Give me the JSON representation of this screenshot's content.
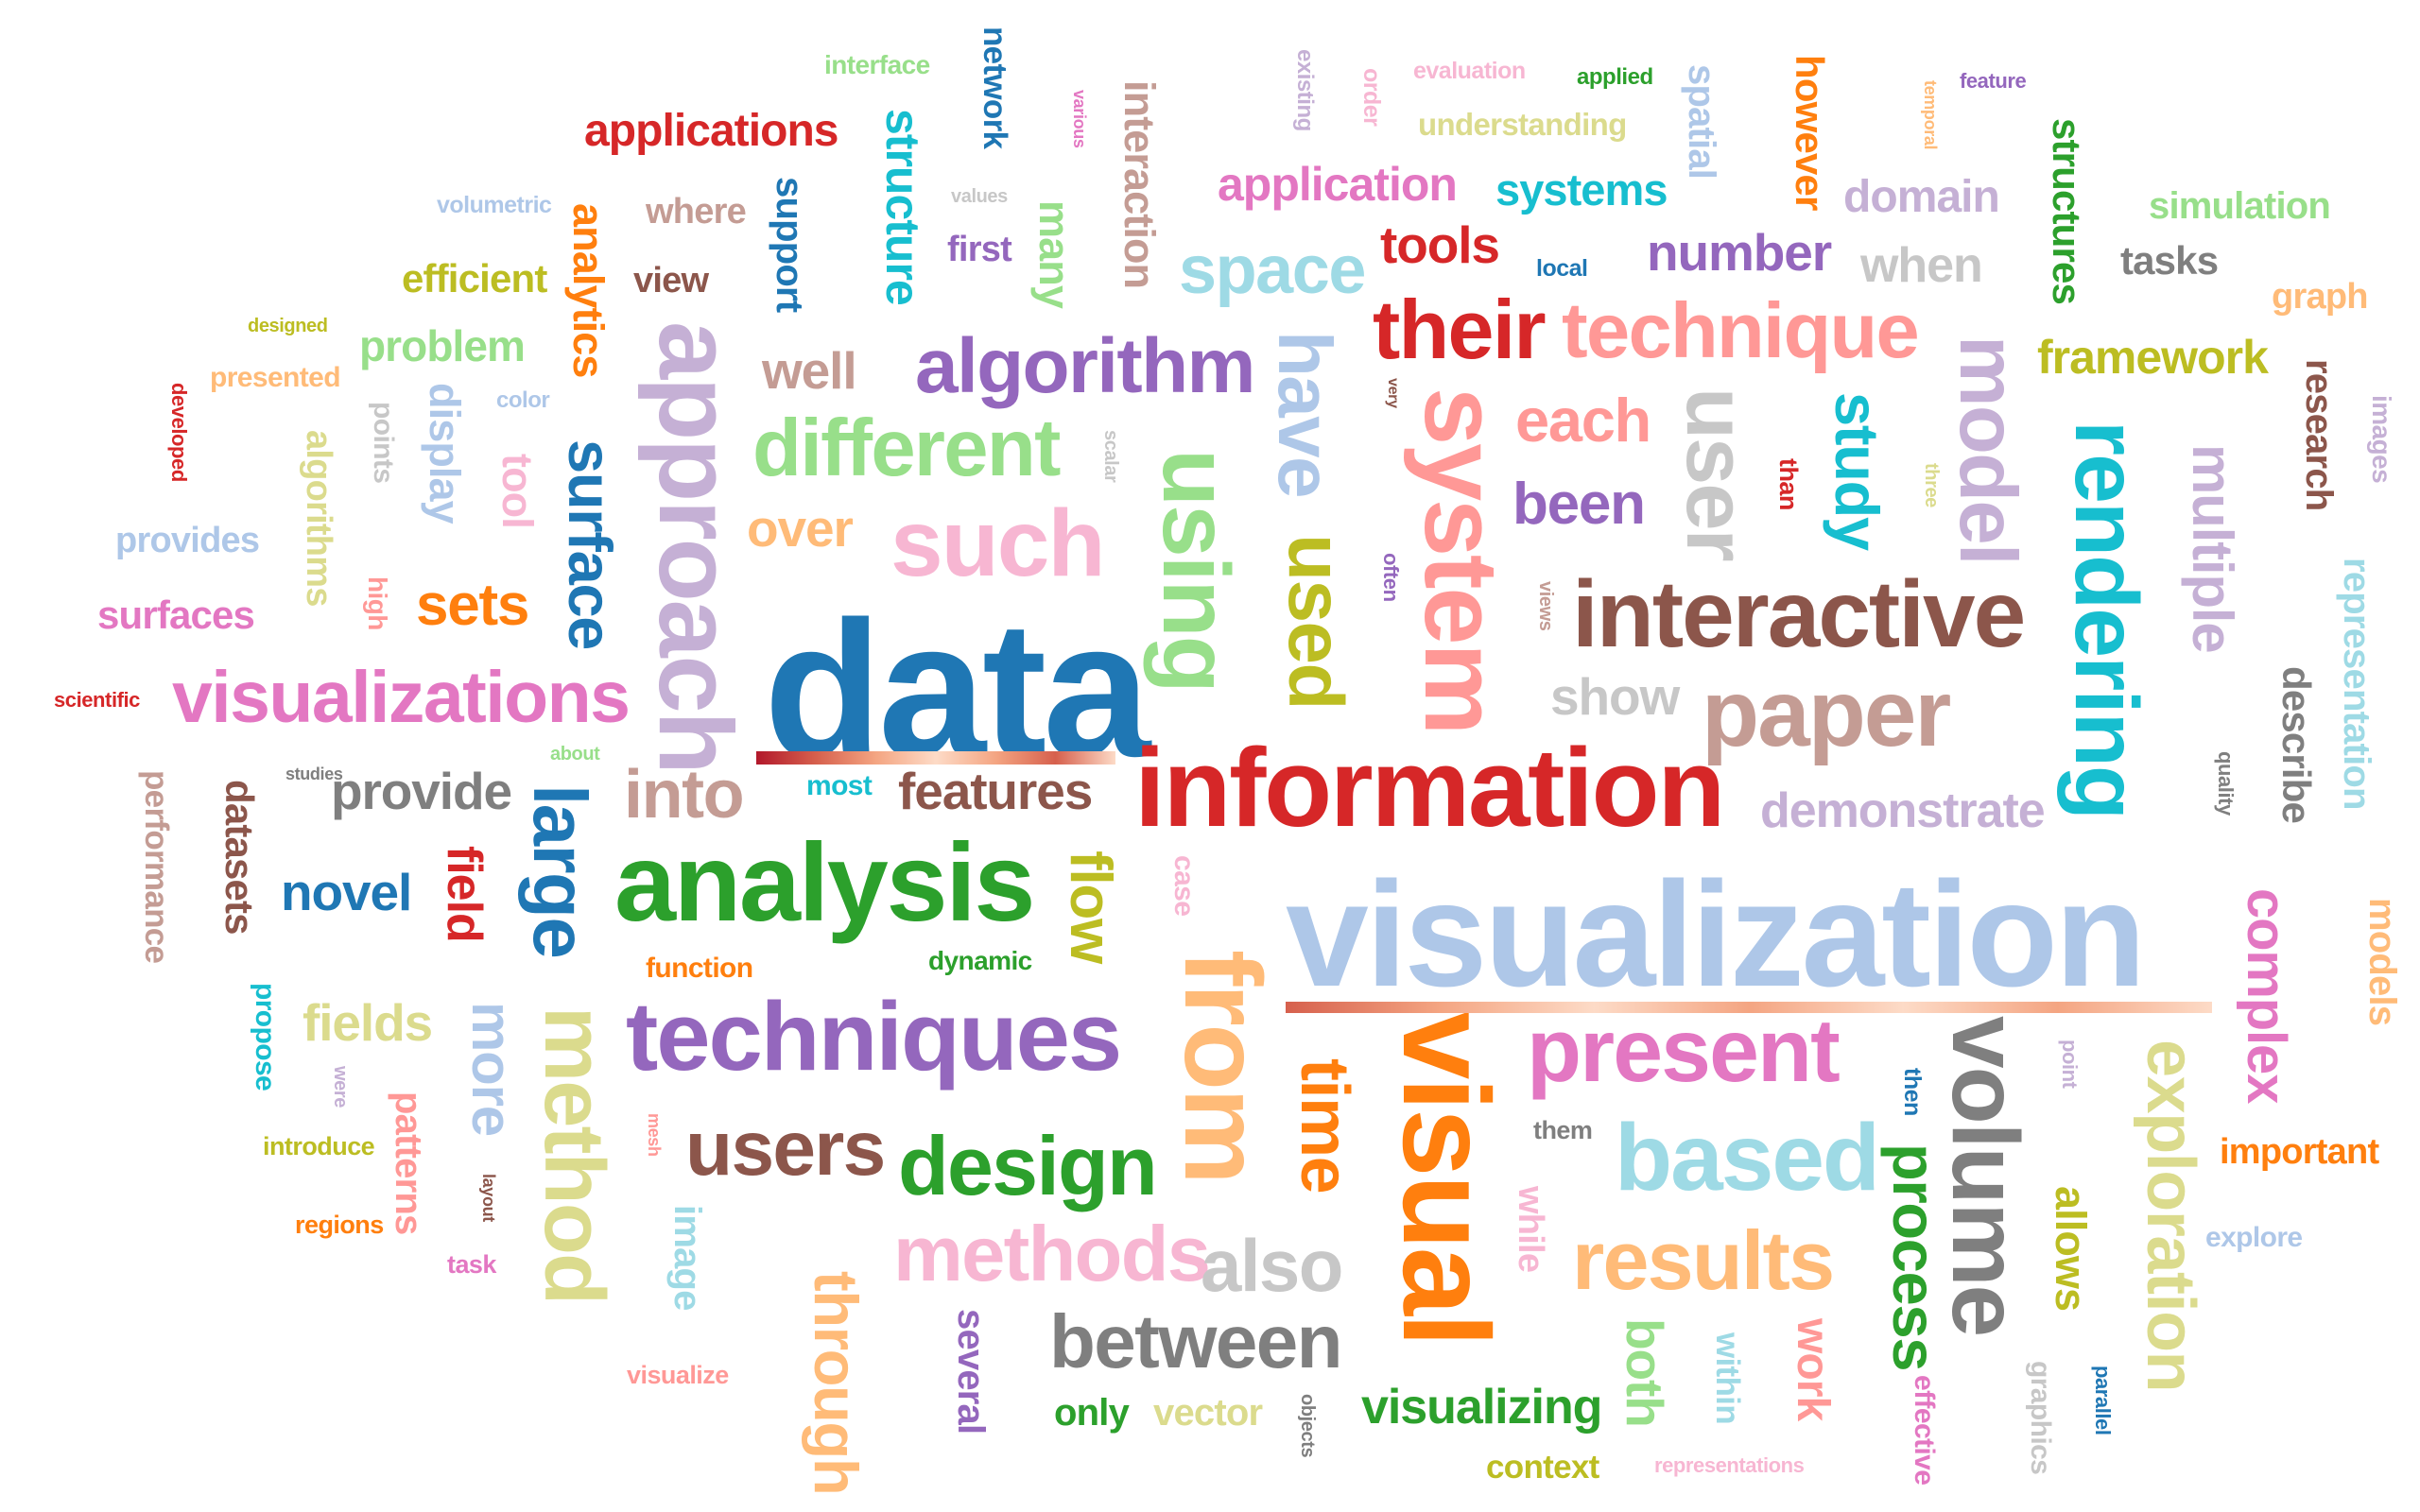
{
  "cloud": {
    "words": [
      {
        "id": "data",
        "text": "data",
        "color": "#1f77b4"
      },
      {
        "id": "visualization",
        "text": "visualization",
        "color": "#aec7e8"
      },
      {
        "id": "information",
        "text": "information",
        "color": "#d62728"
      },
      {
        "id": "analysis",
        "text": "analysis",
        "color": "#2ca02c"
      },
      {
        "id": "techniques",
        "text": "techniques",
        "color": "#9467bd"
      },
      {
        "id": "interactive",
        "text": "interactive",
        "color": "#8c564b"
      },
      {
        "id": "visualizations",
        "text": "visualizations",
        "color": "#e377c2"
      },
      {
        "id": "present",
        "text": "present",
        "color": "#e377c2"
      },
      {
        "id": "algorithm",
        "text": "algorithm",
        "color": "#9467bd"
      },
      {
        "id": "different",
        "text": "different",
        "color": "#98df8a"
      },
      {
        "id": "technique",
        "text": "technique",
        "color": "#ff9896"
      },
      {
        "id": "their",
        "text": "their",
        "color": "#d62728"
      },
      {
        "id": "such",
        "text": "such",
        "color": "#f7b6d2"
      },
      {
        "id": "paper",
        "text": "paper",
        "color": "#c49c94"
      },
      {
        "id": "based",
        "text": "based",
        "color": "#9edae5"
      },
      {
        "id": "design",
        "text": "design",
        "color": "#2ca02c"
      },
      {
        "id": "users",
        "text": "users",
        "color": "#8c564b"
      },
      {
        "id": "methods",
        "text": "methods",
        "color": "#f7b6d2"
      },
      {
        "id": "between",
        "text": "between",
        "color": "#7f7f7f"
      },
      {
        "id": "results",
        "text": "results",
        "color": "#ffbb78"
      },
      {
        "id": "also",
        "text": "also",
        "color": "#c7c7c7"
      },
      {
        "id": "space",
        "text": "space",
        "color": "#9edae5"
      },
      {
        "id": "into",
        "text": "into",
        "color": "#c49c94"
      },
      {
        "id": "applications",
        "text": "applications",
        "color": "#d62728"
      },
      {
        "id": "application",
        "text": "application",
        "color": "#e377c2"
      },
      {
        "id": "systems",
        "text": "systems",
        "color": "#17becf"
      },
      {
        "id": "number",
        "text": "number",
        "color": "#9467bd"
      },
      {
        "id": "tools",
        "text": "tools",
        "color": "#d62728"
      },
      {
        "id": "domain",
        "text": "domain",
        "color": "#c5b0d5"
      },
      {
        "id": "when",
        "text": "when",
        "color": "#c7c7c7"
      },
      {
        "id": "simulation",
        "text": "simulation",
        "color": "#98df8a"
      },
      {
        "id": "tasks",
        "text": "tasks",
        "color": "#7f7f7f"
      },
      {
        "id": "graph",
        "text": "graph",
        "color": "#ffbb78"
      },
      {
        "id": "framework",
        "text": "framework",
        "color": "#bcbd22"
      },
      {
        "id": "efficient",
        "text": "efficient",
        "color": "#bcbd22"
      },
      {
        "id": "problem",
        "text": "problem",
        "color": "#98df8a"
      },
      {
        "id": "presented",
        "text": "presented",
        "color": "#ffbb78"
      },
      {
        "id": "provides",
        "text": "provides",
        "color": "#aec7e8"
      },
      {
        "id": "surfaces",
        "text": "surfaces",
        "color": "#e377c2"
      },
      {
        "id": "sets",
        "text": "sets",
        "color": "#ff7f0e"
      },
      {
        "id": "well",
        "text": "well",
        "color": "#c49c94"
      },
      {
        "id": "over",
        "text": "over",
        "color": "#ffbb78"
      },
      {
        "id": "each",
        "text": "each",
        "color": "#ff9896"
      },
      {
        "id": "been",
        "text": "been",
        "color": "#9467bd"
      },
      {
        "id": "show",
        "text": "show",
        "color": "#c7c7c7"
      },
      {
        "id": "demonstrate",
        "text": "demonstrate",
        "color": "#c5b0d5"
      },
      {
        "id": "provide",
        "text": "provide",
        "color": "#7f7f7f"
      },
      {
        "id": "features",
        "text": "features",
        "color": "#8c564b"
      },
      {
        "id": "novel",
        "text": "novel",
        "color": "#1f77b4"
      },
      {
        "id": "fields",
        "text": "fields",
        "color": "#dbdb8d"
      },
      {
        "id": "visualizing",
        "text": "visualizing",
        "color": "#2ca02c"
      },
      {
        "id": "important",
        "text": "important",
        "color": "#ff7f0e"
      },
      {
        "id": "explore",
        "text": "explore",
        "color": "#aec7e8"
      },
      {
        "id": "interface",
        "text": "interface",
        "color": "#98df8a"
      },
      {
        "id": "evaluation",
        "text": "evaluation",
        "color": "#f7b6d2"
      },
      {
        "id": "applied",
        "text": "applied",
        "color": "#2ca02c"
      },
      {
        "id": "feature",
        "text": "feature",
        "color": "#9467bd"
      },
      {
        "id": "understanding",
        "text": "understanding",
        "color": "#dbdb8d"
      },
      {
        "id": "volumetric",
        "text": "volumetric",
        "color": "#aec7e8"
      },
      {
        "id": "where",
        "text": "where",
        "color": "#c49c94"
      },
      {
        "id": "view",
        "text": "view",
        "color": "#8c564b"
      },
      {
        "id": "first",
        "text": "first",
        "color": "#9467bd"
      },
      {
        "id": "values",
        "text": "values",
        "color": "#c7c7c7"
      },
      {
        "id": "local",
        "text": "local",
        "color": "#1f77b4"
      },
      {
        "id": "designed",
        "text": "designed",
        "color": "#bcbd22"
      },
      {
        "id": "color",
        "text": "color",
        "color": "#aec7e8"
      },
      {
        "id": "scientific",
        "text": "scientific",
        "color": "#d62728"
      },
      {
        "id": "about",
        "text": "about",
        "color": "#98df8a"
      },
      {
        "id": "studies",
        "text": "studies",
        "color": "#7f7f7f"
      },
      {
        "id": "most",
        "text": "most",
        "color": "#17becf"
      },
      {
        "id": "function",
        "text": "function",
        "color": "#ff7f0e"
      },
      {
        "id": "dynamic",
        "text": "dynamic",
        "color": "#2ca02c"
      },
      {
        "id": "introduce",
        "text": "introduce",
        "color": "#bcbd22"
      },
      {
        "id": "regions",
        "text": "regions",
        "color": "#ff7f0e"
      },
      {
        "id": "task",
        "text": "task",
        "color": "#e377c2"
      },
      {
        "id": "visualize",
        "text": "visualize",
        "color": "#ff9896"
      },
      {
        "id": "only",
        "text": "only",
        "color": "#2ca02c"
      },
      {
        "id": "vector",
        "text": "vector",
        "color": "#dbdb8d"
      },
      {
        "id": "context",
        "text": "context",
        "color": "#bcbd22"
      },
      {
        "id": "representations",
        "text": "representations",
        "color": "#f7b6d2"
      },
      {
        "id": "them",
        "text": "them",
        "color": "#7f7f7f"
      },
      {
        "id": "approach",
        "text": "approach",
        "color": "#c5b0d5",
        "v": true
      },
      {
        "id": "using",
        "text": "using",
        "color": "#98df8a",
        "v": true
      },
      {
        "id": "system",
        "text": "system",
        "color": "#ff9896",
        "v": true
      },
      {
        "id": "rendering",
        "text": "rendering",
        "color": "#17becf",
        "v": true
      },
      {
        "id": "visual",
        "text": "visual",
        "color": "#ff7f0e",
        "v": true
      },
      {
        "id": "from",
        "text": "from",
        "color": "#ffbb78",
        "v": true
      },
      {
        "id": "volume",
        "text": "volume",
        "color": "#7f7f7f",
        "v": true
      },
      {
        "id": "method",
        "text": "method",
        "color": "#dbdb8d",
        "v": true
      },
      {
        "id": "large",
        "text": "large",
        "color": "#1f77b4",
        "v": true
      },
      {
        "id": "have",
        "text": "have",
        "color": "#aec7e8",
        "v": true
      },
      {
        "id": "used",
        "text": "used",
        "color": "#bcbd22",
        "v": true
      },
      {
        "id": "user",
        "text": "user",
        "color": "#c7c7c7",
        "v": true
      },
      {
        "id": "model",
        "text": "model",
        "color": "#c5b0d5",
        "v": true
      },
      {
        "id": "surface",
        "text": "surface",
        "color": "#1f77b4",
        "v": true
      },
      {
        "id": "time",
        "text": "time",
        "color": "#ff7f0e",
        "v": true
      },
      {
        "id": "exploration",
        "text": "exploration",
        "color": "#dbdb8d",
        "v": true
      },
      {
        "id": "process",
        "text": "process",
        "color": "#2ca02c",
        "v": true
      },
      {
        "id": "study",
        "text": "study",
        "color": "#17becf",
        "v": true
      },
      {
        "id": "multiple",
        "text": "multiple",
        "color": "#c5b0d5",
        "v": true
      },
      {
        "id": "complex",
        "text": "complex",
        "color": "#e377c2",
        "v": true
      },
      {
        "id": "through",
        "text": "through",
        "color": "#ffbb78",
        "v": true
      },
      {
        "id": "flow",
        "text": "flow",
        "color": "#bcbd22",
        "v": true
      },
      {
        "id": "structure",
        "text": "structure",
        "color": "#17becf",
        "v": true
      },
      {
        "id": "structures",
        "text": "structures",
        "color": "#2ca02c",
        "v": true
      },
      {
        "id": "analytics",
        "text": "analytics",
        "color": "#ff7f0e",
        "v": true
      },
      {
        "id": "interaction",
        "text": "interaction",
        "color": "#c49c94",
        "v": true
      },
      {
        "id": "support",
        "text": "support",
        "color": "#1f77b4",
        "v": true
      },
      {
        "id": "many",
        "text": "many",
        "color": "#98df8a",
        "v": true
      },
      {
        "id": "network",
        "text": "network",
        "color": "#1f77b4",
        "v": true
      },
      {
        "id": "however",
        "text": "however",
        "color": "#ff7f0e",
        "v": true
      },
      {
        "id": "spatial",
        "text": "spatial",
        "color": "#aec7e8",
        "v": true
      },
      {
        "id": "research",
        "text": "research",
        "color": "#8c564b",
        "v": true
      },
      {
        "id": "representation",
        "text": "representation",
        "color": "#9edae5",
        "v": true
      },
      {
        "id": "describe",
        "text": "describe",
        "color": "#7f7f7f",
        "v": true
      },
      {
        "id": "models",
        "text": "models",
        "color": "#ffbb78",
        "v": true
      },
      {
        "id": "allows",
        "text": "allows",
        "color": "#bcbd22",
        "v": true
      },
      {
        "id": "display",
        "text": "display",
        "color": "#aec7e8",
        "v": true
      },
      {
        "id": "algorithms",
        "text": "algorithms",
        "color": "#dbdb8d",
        "v": true
      },
      {
        "id": "tool",
        "text": "tool",
        "color": "#f7b6d2",
        "v": true
      },
      {
        "id": "datasets",
        "text": "datasets",
        "color": "#8c564b",
        "v": true
      },
      {
        "id": "field",
        "text": "field",
        "color": "#d62728",
        "v": true
      },
      {
        "id": "more",
        "text": "more",
        "color": "#aec7e8",
        "v": true
      },
      {
        "id": "patterns",
        "text": "patterns",
        "color": "#ff9896",
        "v": true
      },
      {
        "id": "performance",
        "text": "performance",
        "color": "#c49c94",
        "v": true
      },
      {
        "id": "image",
        "text": "image",
        "color": "#9edae5",
        "v": true
      },
      {
        "id": "several",
        "text": "several",
        "color": "#9467bd",
        "v": true
      },
      {
        "id": "both",
        "text": "both",
        "color": "#98df8a",
        "v": true
      },
      {
        "id": "within",
        "text": "within",
        "color": "#9edae5",
        "v": true
      },
      {
        "id": "work",
        "text": "work",
        "color": "#ff9896",
        "v": true
      },
      {
        "id": "while",
        "text": "while",
        "color": "#f7b6d2",
        "v": true
      },
      {
        "id": "effective",
        "text": "effective",
        "color": "#e377c2",
        "v": true
      },
      {
        "id": "graphics",
        "text": "graphics",
        "color": "#c7c7c7",
        "v": true
      },
      {
        "id": "parallel",
        "text": "parallel",
        "color": "#1f77b4",
        "v": true
      },
      {
        "id": "case",
        "text": "case",
        "color": "#f7b6d2",
        "v": true
      },
      {
        "id": "propose",
        "text": "propose",
        "color": "#17becf",
        "v": true
      },
      {
        "id": "points",
        "text": "points",
        "color": "#c7c7c7",
        "v": true
      },
      {
        "id": "developed",
        "text": "developed",
        "color": "#d62728",
        "v": true
      },
      {
        "id": "high",
        "text": "high",
        "color": "#ff9896",
        "v": true
      },
      {
        "id": "existing",
        "text": "existing",
        "color": "#c5b0d5",
        "v": true
      },
      {
        "id": "order",
        "text": "order",
        "color": "#f7b6d2",
        "v": true
      },
      {
        "id": "temporal",
        "text": "temporal",
        "color": "#ffbb78",
        "v": true
      },
      {
        "id": "images",
        "text": "images",
        "color": "#c5b0d5",
        "v": true
      },
      {
        "id": "various",
        "text": "various",
        "color": "#e377c2",
        "v": true
      },
      {
        "id": "scalar",
        "text": "scalar",
        "color": "#c7c7c7",
        "v": true
      },
      {
        "id": "very",
        "text": "very",
        "color": "#8c564b",
        "v": true
      },
      {
        "id": "often",
        "text": "often",
        "color": "#9467bd",
        "v": true
      },
      {
        "id": "views",
        "text": "views",
        "color": "#c49c94",
        "v": true
      },
      {
        "id": "than",
        "text": "than",
        "color": "#d62728",
        "v": true
      },
      {
        "id": "three",
        "text": "three",
        "color": "#dbdb8d",
        "v": true
      },
      {
        "id": "quality",
        "text": "quality",
        "color": "#7f7f7f",
        "v": true
      },
      {
        "id": "were",
        "text": "were",
        "color": "#c5b0d5",
        "v": true
      },
      {
        "id": "mesh",
        "text": "mesh",
        "color": "#ff9896",
        "v": true
      },
      {
        "id": "layout",
        "text": "layout",
        "color": "#8c564b",
        "v": true
      },
      {
        "id": "point",
        "text": "point",
        "color": "#c5b0d5",
        "v": true
      },
      {
        "id": "then",
        "text": "then",
        "color": "#1f77b4",
        "v": true
      },
      {
        "id": "objects",
        "text": "objects",
        "color": "#7f7f7f",
        "v": true
      }
    ]
  }
}
